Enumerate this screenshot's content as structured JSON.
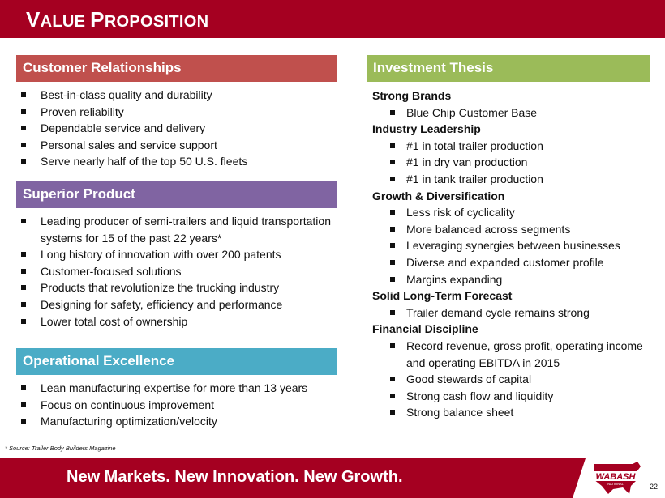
{
  "header": {
    "title_cap1": "V",
    "title_rest1": "ALUE ",
    "title_cap2": "P",
    "title_rest2": "ROPOSITION"
  },
  "colors": {
    "brand": "#A50021",
    "customer": "#C0504D",
    "superior": "#8064A2",
    "operational": "#4BACC6",
    "investment": "#9BBB59"
  },
  "customer": {
    "title": "Customer Relationships",
    "items": [
      "Best-in-class quality and durability",
      "Proven reliability",
      "Dependable service and delivery",
      "Personal sales and service support",
      "Serve nearly half of the top 50 U.S. fleets"
    ]
  },
  "superior": {
    "title": "Superior Product",
    "items": [
      "Leading producer of semi-trailers and liquid transportation systems for 15 of the past 22 years*",
      "Long history of innovation with over 200 patents",
      "Customer-focused solutions",
      "Products that revolutionize the trucking industry",
      "Designing for safety, efficiency and performance",
      "Lower total cost of ownership"
    ]
  },
  "operational": {
    "title": "Operational Excellence",
    "items": [
      "Lean manufacturing expertise for more than 13 years",
      "Focus on continuous improvement",
      "Manufacturing optimization/velocity"
    ]
  },
  "investment": {
    "title": "Investment Thesis",
    "groups": [
      {
        "heading": "Strong Brands",
        "items": [
          "Blue Chip Customer Base"
        ]
      },
      {
        "heading": "Industry Leadership",
        "items": [
          "#1 in total trailer production",
          "#1 in dry van production",
          "#1 in tank trailer production"
        ]
      },
      {
        "heading": "Growth & Diversification",
        "items": [
          "Less risk of cyclicality",
          "More balanced across segments",
          "Leveraging synergies between businesses",
          "Diverse and expanded customer profile",
          "Margins expanding"
        ]
      },
      {
        "heading": "Solid Long-Term Forecast",
        "items": [
          "Trailer demand cycle remains strong"
        ]
      },
      {
        "heading": "Financial Discipline",
        "items": [
          "Record revenue, gross profit, operating income and operating EBITDA in 2015",
          "Good stewards of capital",
          "Strong cash flow and liquidity",
          "Strong balance sheet"
        ]
      }
    ]
  },
  "footnote": "* Source: Trailer Body Builders Magazine",
  "footer": {
    "tagline": "New Markets. New Innovation. New Growth.",
    "logo_text": "WABASH",
    "logo_sub": "NATIONAL",
    "page": "22"
  }
}
